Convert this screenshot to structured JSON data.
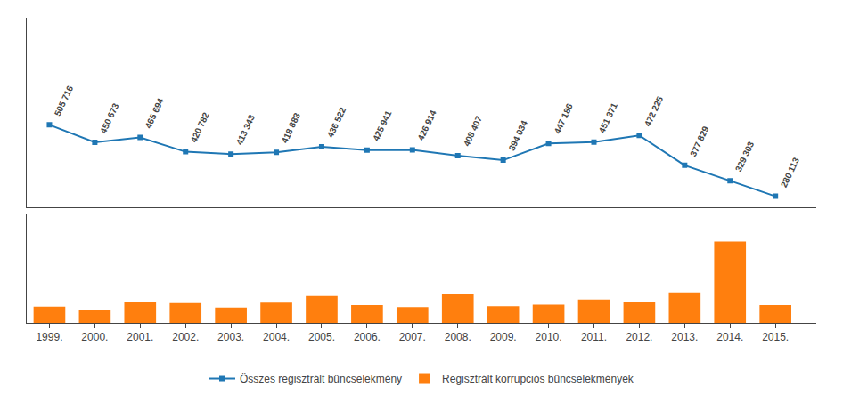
{
  "chart_data": [
    {
      "type": "line",
      "x": [
        1999,
        2000,
        2001,
        2002,
        2003,
        2004,
        2005,
        2006,
        2007,
        2008,
        2009,
        2010,
        2011,
        2012,
        2013,
        2014,
        2015
      ],
      "series": [
        {
          "name": "Összes regisztrált bűncselekmény",
          "marker": "square",
          "values": [
            505716,
            450673,
            465694,
            420782,
            413343,
            418883,
            436522,
            425941,
            426914,
            408407,
            394034,
            447186,
            451371,
            472225,
            377829,
            329303,
            280113
          ],
          "value_labels": [
            "505 716",
            "450 673",
            "465 694",
            "420 782",
            "413 343",
            "418 883",
            "436 522",
            "425 941",
            "426 914",
            "408 407",
            "394 034",
            "447 186",
            "451 371",
            "472 225",
            "377 829",
            "329 303",
            "280 113"
          ]
        }
      ],
      "xlim": [
        1998.5,
        2015.9
      ],
      "ylim": [
        246272.55,
        844120.5
      ],
      "tick_labels": false,
      "data_labels": true,
      "grid": false,
      "legend": "bottom"
    },
    {
      "type": "bar",
      "x": [
        1999,
        2000,
        2001,
        2002,
        2003,
        2004,
        2005,
        2006,
        2007,
        2008,
        2009,
        2010,
        2011,
        2012,
        2013,
        2014,
        2015
      ],
      "series": [
        {
          "name": "Regisztrált korrupciós bűncselekmények",
          "values": [
            3200,
            2500,
            4200,
            3900,
            3000,
            4000,
            5300,
            3500,
            3100,
            5700,
            3300,
            3600,
            4600,
            4100,
            6000,
            16000,
            3500
          ]
        }
      ],
      "xlim": [
        1998.5,
        2015.9
      ],
      "xticks": [
        {
          "value": 1999,
          "label": "1999."
        },
        {
          "value": 2000,
          "label": "2000."
        },
        {
          "value": 2001,
          "label": "2001."
        },
        {
          "value": 2002,
          "label": "2002."
        },
        {
          "value": 2003,
          "label": "2003."
        },
        {
          "value": 2004,
          "label": "2004."
        },
        {
          "value": 2005,
          "label": "2005."
        },
        {
          "value": 2006,
          "label": "2006."
        },
        {
          "value": 2007,
          "label": "2007."
        },
        {
          "value": 2008,
          "label": "2008."
        },
        {
          "value": 2009,
          "label": "2009."
        },
        {
          "value": 2010,
          "label": "2010."
        },
        {
          "value": 2011,
          "label": "2011."
        },
        {
          "value": 2012,
          "label": "2012."
        },
        {
          "value": 2013,
          "label": "2013."
        },
        {
          "value": 2014,
          "label": "2014."
        },
        {
          "value": 2015,
          "label": "2015."
        }
      ],
      "ylim": [
        0,
        21600
      ],
      "tick_labels": "x",
      "grid": false
    }
  ]
}
